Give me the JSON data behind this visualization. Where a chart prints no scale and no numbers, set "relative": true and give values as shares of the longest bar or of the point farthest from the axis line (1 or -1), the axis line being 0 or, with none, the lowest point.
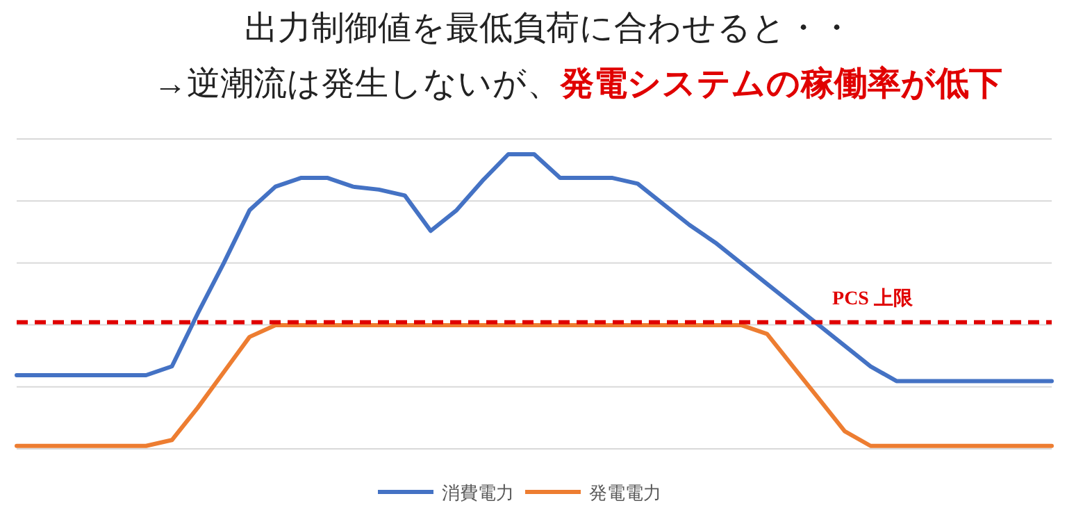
{
  "chart_data": {
    "type": "line",
    "title": "出力制御値を最低負荷に合わせると・・",
    "subtitle": "→逆潮流は発生しないが、",
    "annotations": [
      "発電システムの稼働率が低下"
    ],
    "relative": true,
    "grid": "y",
    "legend": "bottom",
    "marker": "none",
    "line_style": "solid",
    "categories": [
      null,
      null,
      null,
      null,
      null,
      null,
      null,
      null,
      null,
      null,
      null,
      null,
      null,
      null,
      null,
      null,
      null,
      null,
      null,
      null,
      null,
      null,
      null,
      null,
      null,
      null,
      null,
      null,
      null,
      null,
      null,
      null,
      null,
      null,
      null,
      null,
      null,
      null,
      null,
      null,
      null
    ],
    "series": [
      {
        "name": "消費電力",
        "color": "#4472c4",
        "values": [
          0.25,
          0.25,
          0.25,
          0.25,
          0.25,
          0.25,
          0.28,
          0.46,
          0.63,
          0.81,
          0.89,
          0.92,
          0.92,
          0.89,
          0.88,
          0.86,
          0.74,
          0.81,
          0.91,
          1,
          1,
          0.92,
          0.92,
          0.92,
          0.9,
          0.83,
          0.76,
          0.7,
          0.63,
          0.56,
          0.49,
          0.42,
          0.35,
          0.28,
          0.23,
          0.23,
          0.23,
          0.23,
          0.23,
          0.23,
          0.23
        ]
      },
      {
        "name": "発電電力",
        "color": "#ed7d31",
        "values": [
          0.01,
          0.01,
          0.01,
          0.01,
          0.01,
          0.01,
          0.03,
          0.14,
          0.26,
          0.38,
          0.42,
          0.42,
          0.42,
          0.42,
          0.42,
          0.42,
          0.42,
          0.42,
          0.42,
          0.42,
          0.42,
          0.42,
          0.42,
          0.42,
          0.42,
          0.42,
          0.42,
          0.42,
          0.42,
          0.39,
          0.28,
          0.17,
          0.06,
          0.01,
          0.01,
          0.01,
          0.01,
          0.01,
          0.01,
          0.01,
          0.01
        ]
      }
    ],
    "ref_lines": [
      {
        "axis": "y",
        "value": 0.43,
        "label": "PCS 上限",
        "color": "#e00000",
        "line_style": "dashed"
      }
    ]
  }
}
